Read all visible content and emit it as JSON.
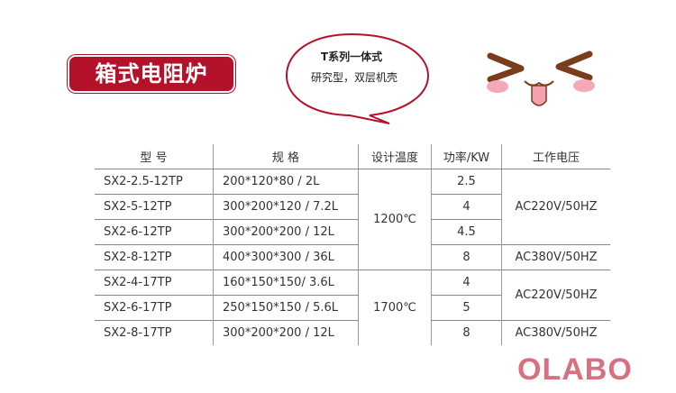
{
  "title": "箱式电阻炉",
  "bubble": {
    "line1": "T系列一体式",
    "line2": "研究型，双层机壳"
  },
  "table": {
    "headers": [
      "型 号",
      "规 格",
      "设计温度",
      "功率/KW",
      "工作电压"
    ],
    "rows": [
      {
        "model": "SX2-2.5-12TP",
        "spec": "200*120*80 / 2L",
        "power": "2.5"
      },
      {
        "model": "SX2-5-12TP",
        "spec": "300*200*120 / 7.2L",
        "power": "4"
      },
      {
        "model": "SX2-6-12TP",
        "spec": "300*200*200 / 12L",
        "power": "4.5"
      },
      {
        "model": "SX2-8-12TP",
        "spec": "400*300*300 / 36L",
        "power": "8"
      },
      {
        "model": "SX2-4-17TP",
        "spec": "160*150*150/ 3.6L",
        "power": "4"
      },
      {
        "model": "SX2-6-17TP",
        "spec": "250*150*150 / 5.6L",
        "power": "5"
      },
      {
        "model": "SX2-8-17TP",
        "spec": "300*200*200 / 12L",
        "power": "8"
      }
    ],
    "temps": [
      "1200℃",
      "1700℃"
    ],
    "voltages": [
      "AC220V/50HZ",
      "AC380V/50HZ",
      "AC220V/50HZ",
      "AC380V/50HZ"
    ]
  },
  "logo": "OLABO",
  "colors": {
    "title_bg": "#b4112a",
    "logo": "#d8707f",
    "bubble_border": "#b4112a"
  }
}
